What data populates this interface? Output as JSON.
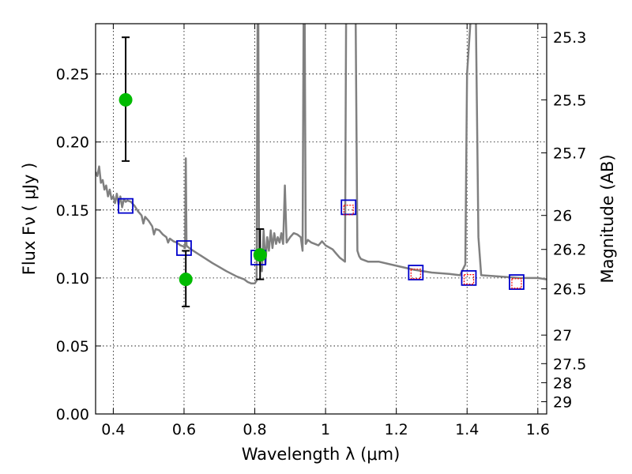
{
  "chart_data": {
    "type": "scatter",
    "title": "",
    "xlabel": "Wavelength  λ (μm)",
    "ylabel": "Flux  Fν  ( μJy )",
    "ylabel_right": "Magnitude (AB)",
    "xlim": [
      0.35,
      1.625
    ],
    "ylim": [
      0.0,
      0.287
    ],
    "grid": true,
    "x_ticks": [
      0.4,
      0.6,
      0.8,
      1.0,
      1.2,
      1.4,
      1.6
    ],
    "x_tick_labels": [
      "0.4",
      "0.6",
      "0.8",
      "1",
      "1.2",
      "1.4",
      "1.6"
    ],
    "y_ticks": [
      0.0,
      0.05,
      0.1,
      0.15,
      0.2,
      0.25
    ],
    "y_tick_labels": [
      "0.00",
      "0.05",
      "0.10",
      "0.15",
      "0.20",
      "0.25"
    ],
    "right_ticks": [
      {
        "label": "25.3",
        "flux": 0.277
      },
      {
        "label": "25.5",
        "flux": 0.231
      },
      {
        "label": "25.7",
        "flux": 0.192
      },
      {
        "label": "26",
        "flux": 0.146
      },
      {
        "label": "26.2",
        "flux": 0.121
      },
      {
        "label": "26.5",
        "flux": 0.092
      },
      {
        "label": "27",
        "flux": 0.058
      },
      {
        "label": "27.5",
        "flux": 0.037
      },
      {
        "label": "28",
        "flux": 0.023
      },
      {
        "label": "29",
        "flux": 0.009
      }
    ],
    "series": [
      {
        "kind": "line",
        "color": "#808080",
        "points": [
          [
            0.35,
            0.178
          ],
          [
            0.355,
            0.175
          ],
          [
            0.36,
            0.182
          ],
          [
            0.365,
            0.17
          ],
          [
            0.37,
            0.172
          ],
          [
            0.375,
            0.165
          ],
          [
            0.38,
            0.168
          ],
          [
            0.385,
            0.16
          ],
          [
            0.39,
            0.165
          ],
          [
            0.395,
            0.158
          ],
          [
            0.4,
            0.16
          ],
          [
            0.405,
            0.155
          ],
          [
            0.41,
            0.162
          ],
          [
            0.415,
            0.154
          ],
          [
            0.42,
            0.16
          ],
          [
            0.425,
            0.152
          ],
          [
            0.43,
            0.158
          ],
          [
            0.435,
            0.156
          ],
          [
            0.44,
            0.157
          ],
          [
            0.45,
            0.156
          ],
          [
            0.46,
            0.153
          ],
          [
            0.47,
            0.149
          ],
          [
            0.48,
            0.146
          ],
          [
            0.485,
            0.14
          ],
          [
            0.49,
            0.145
          ],
          [
            0.5,
            0.142
          ],
          [
            0.51,
            0.138
          ],
          [
            0.515,
            0.132
          ],
          [
            0.52,
            0.136
          ],
          [
            0.53,
            0.135
          ],
          [
            0.54,
            0.132
          ],
          [
            0.55,
            0.13
          ],
          [
            0.555,
            0.126
          ],
          [
            0.56,
            0.129
          ],
          [
            0.57,
            0.127
          ],
          [
            0.58,
            0.126
          ],
          [
            0.59,
            0.124
          ],
          [
            0.6,
            0.123
          ],
          [
            0.603,
            0.122
          ],
          [
            0.605,
            0.188
          ],
          [
            0.607,
            0.124
          ],
          [
            0.61,
            0.123
          ],
          [
            0.62,
            0.121
          ],
          [
            0.65,
            0.116
          ],
          [
            0.68,
            0.111
          ],
          [
            0.7,
            0.108
          ],
          [
            0.72,
            0.105
          ],
          [
            0.75,
            0.101
          ],
          [
            0.77,
            0.099
          ],
          [
            0.78,
            0.097
          ],
          [
            0.79,
            0.096
          ],
          [
            0.8,
            0.096
          ],
          [
            0.805,
            0.098
          ],
          [
            0.808,
            0.29
          ],
          [
            0.81,
            0.29
          ],
          [
            0.812,
            0.115
          ],
          [
            0.815,
            0.11
          ],
          [
            0.82,
            0.105
          ],
          [
            0.825,
            0.135
          ],
          [
            0.83,
            0.11
          ],
          [
            0.835,
            0.13
          ],
          [
            0.84,
            0.12
          ],
          [
            0.845,
            0.135
          ],
          [
            0.85,
            0.122
          ],
          [
            0.855,
            0.133
          ],
          [
            0.86,
            0.125
          ],
          [
            0.865,
            0.13
          ],
          [
            0.87,
            0.126
          ],
          [
            0.875,
            0.133
          ],
          [
            0.88,
            0.125
          ],
          [
            0.885,
            0.168
          ],
          [
            0.89,
            0.126
          ],
          [
            0.9,
            0.13
          ],
          [
            0.91,
            0.133
          ],
          [
            0.92,
            0.132
          ],
          [
            0.93,
            0.13
          ],
          [
            0.935,
            0.12
          ],
          [
            0.938,
            0.29
          ],
          [
            0.941,
            0.29
          ],
          [
            0.944,
            0.125
          ],
          [
            0.95,
            0.128
          ],
          [
            0.96,
            0.126
          ],
          [
            0.97,
            0.125
          ],
          [
            0.98,
            0.124
          ],
          [
            0.99,
            0.127
          ],
          [
            1.0,
            0.124
          ],
          [
            1.02,
            0.121
          ],
          [
            1.03,
            0.118
          ],
          [
            1.04,
            0.115
          ],
          [
            1.05,
            0.113
          ],
          [
            1.055,
            0.112
          ],
          [
            1.058,
            0.29
          ],
          [
            1.085,
            0.29
          ],
          [
            1.09,
            0.12
          ],
          [
            1.095,
            0.116
          ],
          [
            1.1,
            0.114
          ],
          [
            1.12,
            0.112
          ],
          [
            1.15,
            0.112
          ],
          [
            1.2,
            0.109
          ],
          [
            1.25,
            0.106
          ],
          [
            1.3,
            0.104
          ],
          [
            1.35,
            0.103
          ],
          [
            1.38,
            0.102
          ],
          [
            1.395,
            0.11
          ],
          [
            1.4,
            0.25
          ],
          [
            1.41,
            0.29
          ],
          [
            1.425,
            0.29
          ],
          [
            1.432,
            0.13
          ],
          [
            1.44,
            0.102
          ],
          [
            1.5,
            0.101
          ],
          [
            1.55,
            0.1
          ],
          [
            1.6,
            0.1
          ],
          [
            1.625,
            0.099
          ]
        ]
      },
      {
        "kind": "blue-square",
        "color": "#0000cc",
        "points": [
          [
            0.435,
            0.153
          ],
          [
            0.6,
            0.122
          ],
          [
            0.81,
            0.115
          ],
          [
            1.065,
            0.152
          ],
          [
            1.255,
            0.104
          ],
          [
            1.405,
            0.1
          ],
          [
            1.54,
            0.097
          ]
        ]
      },
      {
        "kind": "red-square",
        "color": "#ff0000",
        "points": [
          [
            1.065,
            0.15
          ],
          [
            1.255,
            0.103
          ],
          [
            1.405,
            0.099
          ],
          [
            1.54,
            0.096
          ]
        ]
      },
      {
        "kind": "green-point",
        "color": "#00bb00",
        "points": [
          {
            "x": 0.435,
            "y": 0.231,
            "ylo": 0.186,
            "yhi": 0.277
          },
          {
            "x": 0.605,
            "y": 0.099,
            "ylo": 0.079,
            "yhi": 0.12
          },
          {
            "x": 0.815,
            "y": 0.117,
            "ylo": 0.099,
            "yhi": 0.136
          }
        ]
      }
    ]
  }
}
